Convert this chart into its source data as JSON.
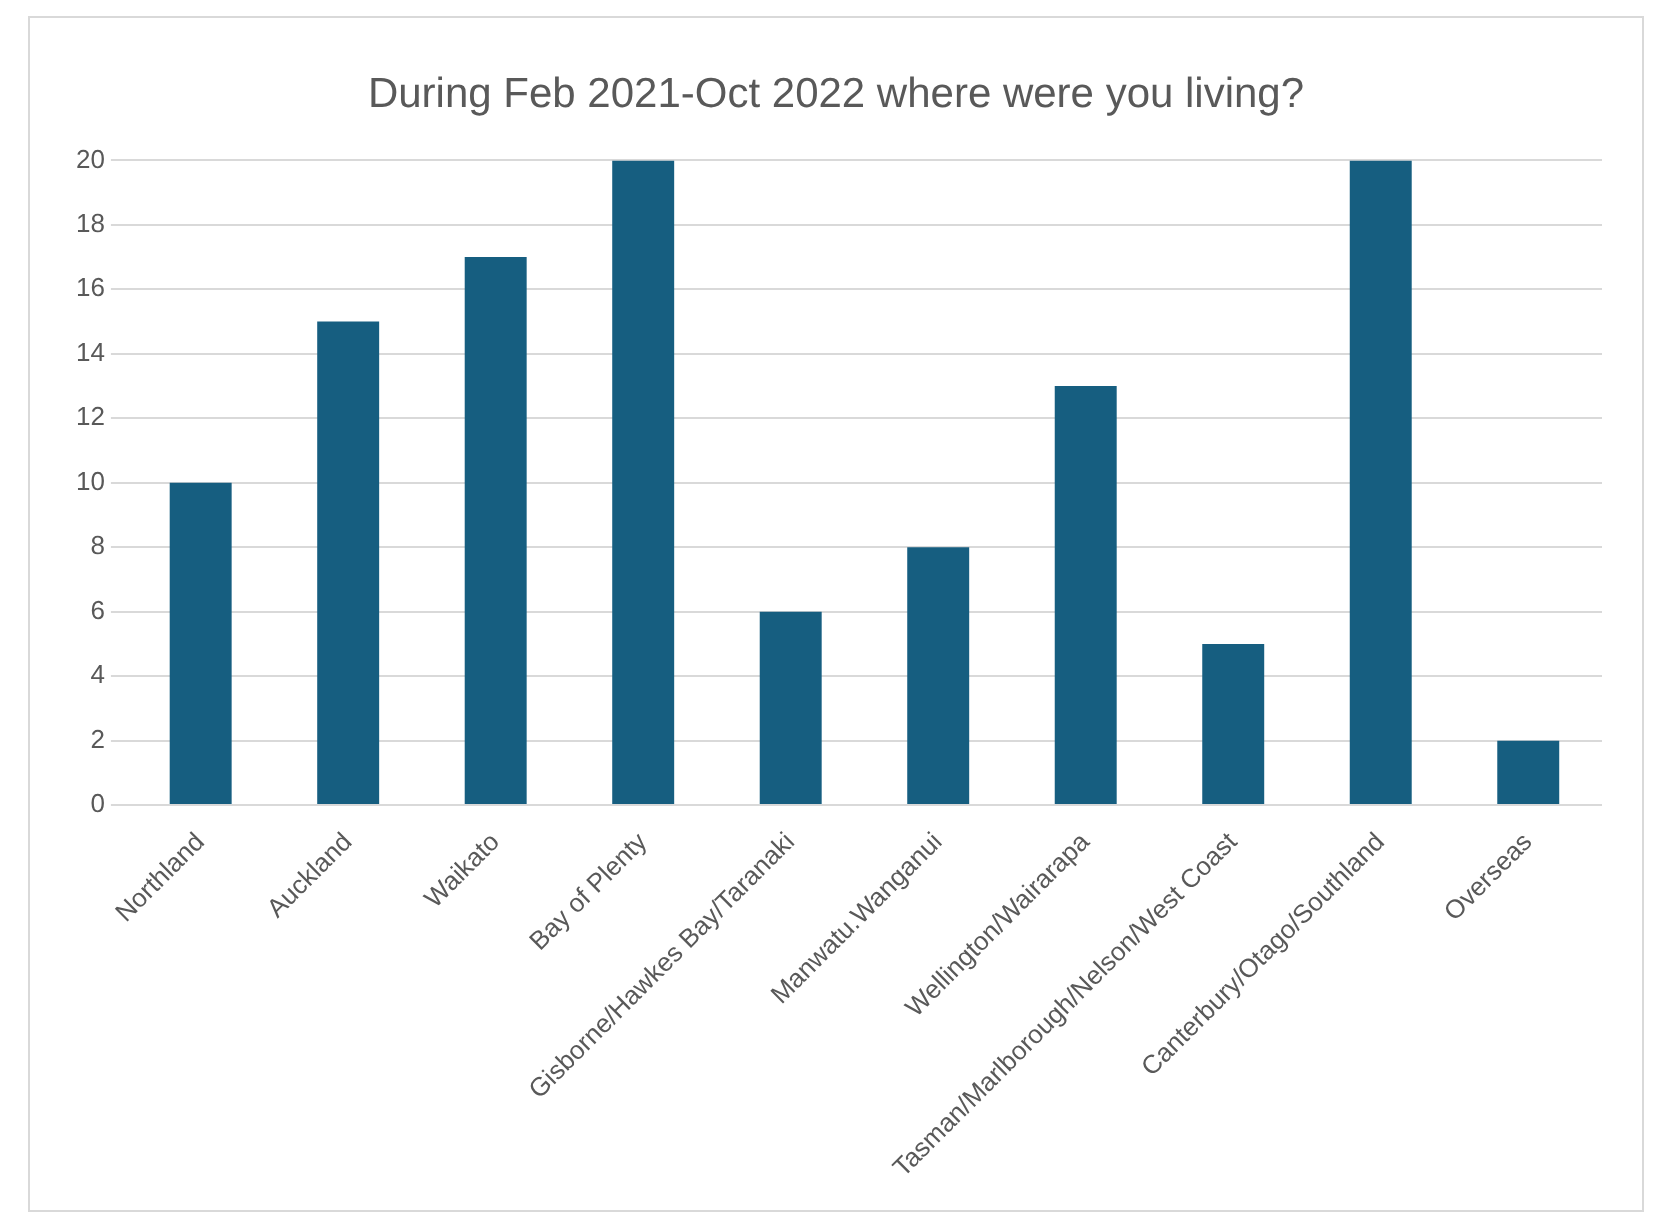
{
  "chart_data": {
    "type": "bar",
    "title": "During Feb 2021-Oct 2022 where were you living?",
    "categories": [
      "Northland",
      "Auckland",
      "Waikato",
      "Bay of Plenty",
      "Gisborne/Hawkes Bay/Taranaki",
      "Manwatu.Wanganui",
      "Wellington/Wairarapa",
      "Tasman/Marlborough/Nelson/West Coast",
      "Canterbury/Otago/Southland",
      "Overseas"
    ],
    "values": [
      10,
      15,
      17,
      20,
      6,
      8,
      13,
      5,
      20,
      2
    ],
    "color": "#165e80",
    "ylim": [
      0,
      20
    ],
    "yticks": [
      0,
      2,
      4,
      6,
      8,
      10,
      12,
      14,
      16,
      18,
      20
    ],
    "grid": "y",
    "legend": false
  }
}
